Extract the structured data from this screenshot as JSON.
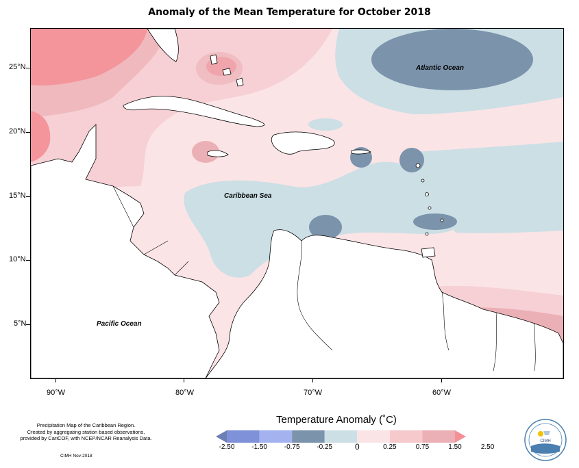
{
  "title": "Anomaly of the Mean Temperature for October 2018",
  "map": {
    "ocean_labels": {
      "atlantic": "Atlantic Ocean",
      "caribbean": "Caribbean Sea",
      "pacific": "Pacific Ocean"
    },
    "lat_labels": [
      "25°N",
      "20°N",
      "15°N",
      "10°N",
      "5°N"
    ],
    "lon_labels": [
      "90°W",
      "80°W",
      "70°W",
      "60°W"
    ]
  },
  "legend": {
    "title": "Temperature Anomaly (˚C)",
    "ticks": [
      "-2.50",
      "-1.50",
      "-0.75",
      "-0.25",
      "0",
      "0.25",
      "0.75",
      "1.50",
      "2.50"
    ],
    "colors": [
      "#6e7fb5",
      "#7f91d8",
      "#a4b2f0",
      "#7b93ab",
      "#cbdfe5",
      "#fbe4e6",
      "#f6c9cd",
      "#ebb0b5",
      "#f48f95"
    ]
  },
  "notes": {
    "line1": "Precipitation Map of the Caribbean Region.",
    "line2": "Created by aggregating station based observations,",
    "line3": "provided by CariCOF, with NCEP/NCAR Reanalysis Data.",
    "credit": "CIMH Nov-2018"
  },
  "logo": {
    "label": "CIMH"
  }
}
